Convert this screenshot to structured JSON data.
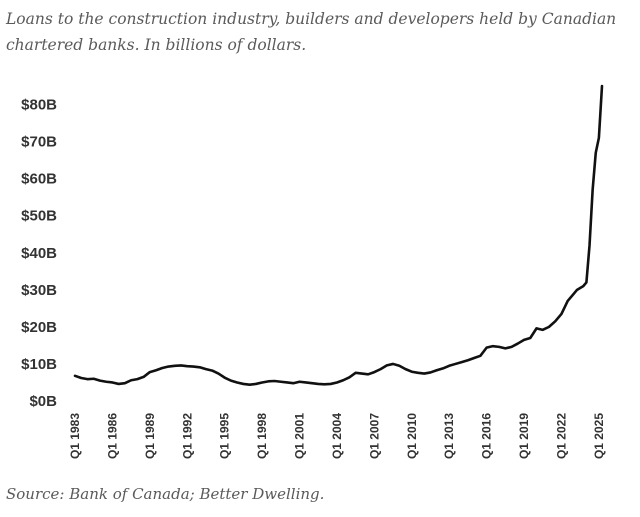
{
  "title": "Loans to the construction industry, builders and developers held by Canadian chartered banks. In billions of dollars.",
  "source": "Source: Bank of Canada; Better Dwelling.",
  "chart_data": {
    "type": "line",
    "title": "Loans to the construction industry, builders and developers held by Canadian chartered banks. In billions of dollars.",
    "xlabel": "",
    "ylabel": "",
    "ylim": [
      0,
      85
    ],
    "xlim": [
      1983.0,
      2025.25
    ],
    "grid": false,
    "legend": "none",
    "y_ticks": [
      {
        "value": 0,
        "label": "$0B"
      },
      {
        "value": 10,
        "label": "$10B"
      },
      {
        "value": 20,
        "label": "$20B"
      },
      {
        "value": 30,
        "label": "$30B"
      },
      {
        "value": 40,
        "label": "$40B"
      },
      {
        "value": 50,
        "label": "$50B"
      },
      {
        "value": 60,
        "label": "$60B"
      },
      {
        "value": 70,
        "label": "$70B"
      },
      {
        "value": 80,
        "label": "$80B"
      }
    ],
    "x_ticks": [
      {
        "value": 1983.0,
        "label": "Q1 1983"
      },
      {
        "value": 1986.0,
        "label": "Q1 1986"
      },
      {
        "value": 1989.0,
        "label": "Q1 1989"
      },
      {
        "value": 1992.0,
        "label": "Q1 1992"
      },
      {
        "value": 1995.0,
        "label": "Q1 1995"
      },
      {
        "value": 1998.0,
        "label": "Q1 1998"
      },
      {
        "value": 2001.0,
        "label": "Q1 2001"
      },
      {
        "value": 2004.0,
        "label": "Q1 2004"
      },
      {
        "value": 2007.0,
        "label": "Q1 2007"
      },
      {
        "value": 2010.0,
        "label": "Q1 2010"
      },
      {
        "value": 2013.0,
        "label": "Q1 2013"
      },
      {
        "value": 2016.0,
        "label": "Q1 2016"
      },
      {
        "value": 2019.0,
        "label": "Q1 2019"
      },
      {
        "value": 2022.0,
        "label": "Q1 2022"
      },
      {
        "value": 2025.0,
        "label": "Q1 2025"
      }
    ],
    "series": [
      {
        "color": "#111111",
        "x": [
          1983.0,
          1983.5,
          1984.0,
          1984.5,
          1985.0,
          1985.5,
          1986.0,
          1986.5,
          1987.0,
          1987.5,
          1988.0,
          1988.5,
          1989.0,
          1989.5,
          1990.0,
          1990.5,
          1991.0,
          1991.5,
          1992.0,
          1992.5,
          1993.0,
          1993.5,
          1994.0,
          1994.5,
          1995.0,
          1995.5,
          1996.0,
          1996.5,
          1997.0,
          1997.5,
          1998.0,
          1998.5,
          1999.0,
          1999.5,
          2000.0,
          2000.5,
          2001.0,
          2001.5,
          2002.0,
          2002.5,
          2003.0,
          2003.5,
          2004.0,
          2004.5,
          2005.0,
          2005.5,
          2006.0,
          2006.5,
          2007.0,
          2007.5,
          2008.0,
          2008.5,
          2009.0,
          2009.5,
          2010.0,
          2010.5,
          2011.0,
          2011.5,
          2012.0,
          2012.5,
          2013.0,
          2013.5,
          2014.0,
          2014.5,
          2015.0,
          2015.5,
          2016.0,
          2016.5,
          2017.0,
          2017.5,
          2018.0,
          2018.5,
          2019.0,
          2019.5,
          2020.0,
          2020.5,
          2021.0,
          2021.5,
          2022.0,
          2022.5,
          2023.0,
          2023.25,
          2023.5,
          2023.75,
          2024.0,
          2024.25,
          2024.5,
          2024.75,
          2025.0,
          2025.25
        ],
        "values": [
          6.8,
          6.2,
          5.9,
          6.0,
          5.5,
          5.2,
          5.0,
          4.6,
          4.8,
          5.6,
          5.9,
          6.5,
          7.8,
          8.3,
          8.9,
          9.3,
          9.5,
          9.6,
          9.4,
          9.3,
          9.1,
          8.6,
          8.2,
          7.4,
          6.3,
          5.5,
          5.0,
          4.6,
          4.4,
          4.6,
          5.0,
          5.3,
          5.4,
          5.2,
          5.0,
          4.8,
          5.2,
          5.0,
          4.8,
          4.6,
          4.5,
          4.6,
          5.0,
          5.6,
          6.4,
          7.6,
          7.4,
          7.2,
          7.8,
          8.6,
          9.6,
          10.0,
          9.5,
          8.6,
          7.9,
          7.6,
          7.4,
          7.7,
          8.3,
          8.8,
          9.5,
          10.0,
          10.5,
          11.0,
          11.6,
          12.2,
          14.4,
          14.8,
          14.6,
          14.2,
          14.6,
          15.5,
          16.5,
          17.0,
          19.6,
          19.2,
          20.0,
          21.5,
          23.5,
          27.0,
          29.0,
          30.0,
          30.5,
          31.0,
          32.0,
          42.0,
          57.0,
          67.0,
          71.0,
          85.0
        ]
      }
    ]
  }
}
